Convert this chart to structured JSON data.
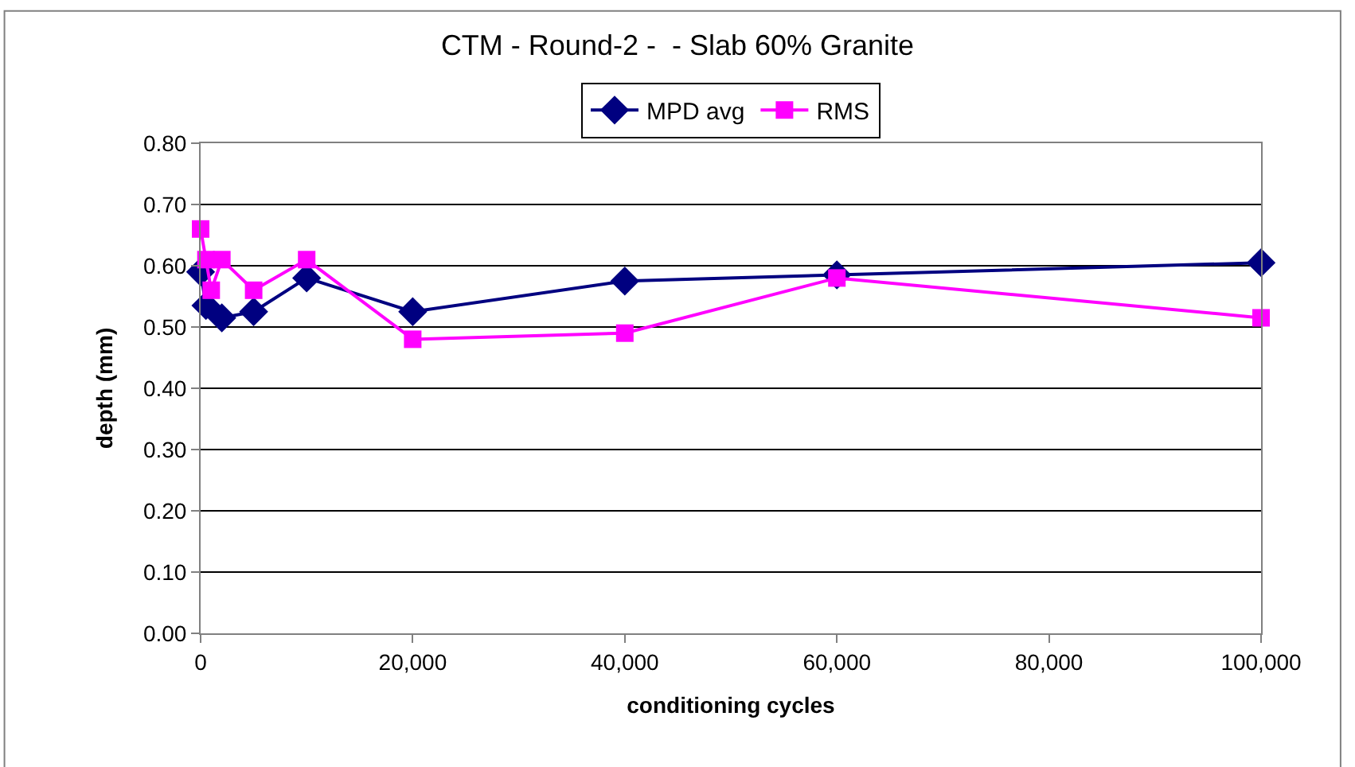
{
  "chart_data": {
    "type": "line",
    "title": "CTM - Round-2 -  - Slab 60% Granite",
    "xlabel": "conditioning cycles",
    "ylabel": "depth (mm)",
    "series": [
      {
        "name": "MPD avg",
        "color": "#000080",
        "marker": "diamond",
        "x": [
          0,
          500,
          2000,
          5000,
          10000,
          20000,
          40000,
          60000,
          100000
        ],
        "values": [
          0.59,
          0.535,
          0.515,
          0.525,
          0.58,
          0.525,
          0.575,
          0.585,
          0.605
        ]
      },
      {
        "name": "RMS",
        "color": "#ff00ff",
        "marker": "square",
        "x": [
          0,
          500,
          1000,
          2000,
          5000,
          10000,
          20000,
          40000,
          60000,
          100000
        ],
        "values": [
          0.66,
          0.61,
          0.56,
          0.61,
          0.56,
          0.61,
          0.48,
          0.49,
          0.58,
          0.515
        ]
      }
    ],
    "xlim": [
      0,
      100000
    ],
    "xticks": [
      {
        "value": 0,
        "label": "0"
      },
      {
        "value": 20000,
        "label": "20,000"
      },
      {
        "value": 40000,
        "label": "40,000"
      },
      {
        "value": 60000,
        "label": "60,000"
      },
      {
        "value": 80000,
        "label": "80,000"
      },
      {
        "value": 100000,
        "label": "100,000"
      }
    ],
    "ylim": [
      0,
      0.8
    ],
    "yticks": [
      {
        "value": 0,
        "label": "0.00"
      },
      {
        "value": 0.1,
        "label": "0.10"
      },
      {
        "value": 0.2,
        "label": "0.20"
      },
      {
        "value": 0.3,
        "label": "0.30"
      },
      {
        "value": 0.4,
        "label": "0.40"
      },
      {
        "value": 0.5,
        "label": "0.50"
      },
      {
        "value": 0.6,
        "label": "0.60"
      },
      {
        "value": 0.7,
        "label": "0.70"
      },
      {
        "value": 0.8,
        "label": "0.80"
      }
    ],
    "grid": "y",
    "legend": "top",
    "line_style": "solid"
  }
}
